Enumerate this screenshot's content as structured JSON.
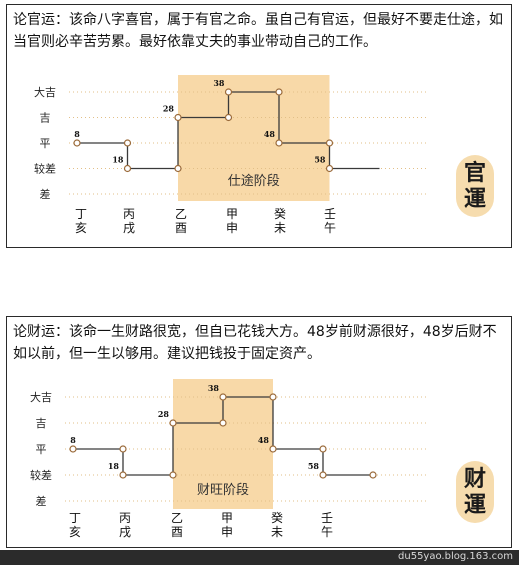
{
  "panels": [
    {
      "text": "论官运：该命八字喜官，属于有官之命。虽自己有官运，但最好不要走仕途，如当官则必辛苦劳累。最好依靠丈夫的事业带动自己的工作。",
      "seal": [
        "官",
        "運"
      ]
    },
    {
      "text": "论财运：该命一生财路很宽，但自已花钱大方。48岁前财源很好，48岁后财不如以前，但一生以够用。建议把钱投于固定资产。",
      "seal": [
        "财",
        "運"
      ]
    }
  ],
  "footer": "du55yao.blog.163.com",
  "colors": {
    "band": "#f8d9a8",
    "line": "#3a3a3a",
    "grid": "#e2bf87",
    "marker_fill": "#ffffff",
    "marker_stroke": "#9a6a3a"
  },
  "chart_data": [
    {
      "type": "line",
      "step": true,
      "y_levels": [
        "差",
        "较差",
        "平",
        "吉",
        "大吉"
      ],
      "categories": [
        [
          "丁",
          "亥"
        ],
        [
          "丙",
          "戌"
        ],
        [
          "乙",
          "酉"
        ],
        [
          "甲",
          "申"
        ],
        [
          "癸",
          "未"
        ],
        [
          "壬",
          "午"
        ]
      ],
      "highlight_band": {
        "label": "仕途阶段",
        "from_age": 28,
        "to_age": 58
      },
      "points": [
        {
          "age": 8,
          "level": "平"
        },
        {
          "age": 18,
          "level": "较差"
        },
        {
          "age": 28,
          "level": "吉"
        },
        {
          "age": 38,
          "level": "大吉"
        },
        {
          "age": 48,
          "level": "平"
        },
        {
          "age": 58,
          "level": "较差"
        }
      ],
      "tail_level": "较差"
    },
    {
      "type": "line",
      "step": true,
      "y_levels": [
        "差",
        "较差",
        "平",
        "吉",
        "大吉"
      ],
      "categories": [
        [
          "丁",
          "亥"
        ],
        [
          "丙",
          "戌"
        ],
        [
          "乙",
          "酉"
        ],
        [
          "甲",
          "申"
        ],
        [
          "癸",
          "未"
        ],
        [
          "壬",
          "午"
        ]
      ],
      "highlight_band": {
        "label": "财旺阶段",
        "from_age": 28,
        "to_age": 48
      },
      "points": [
        {
          "age": 8,
          "level": "平"
        },
        {
          "age": 18,
          "level": "较差"
        },
        {
          "age": 28,
          "level": "吉"
        },
        {
          "age": 38,
          "level": "大吉"
        },
        {
          "age": 48,
          "level": "平"
        },
        {
          "age": 58,
          "level": "较差"
        }
      ],
      "tail_level": "较差"
    }
  ]
}
